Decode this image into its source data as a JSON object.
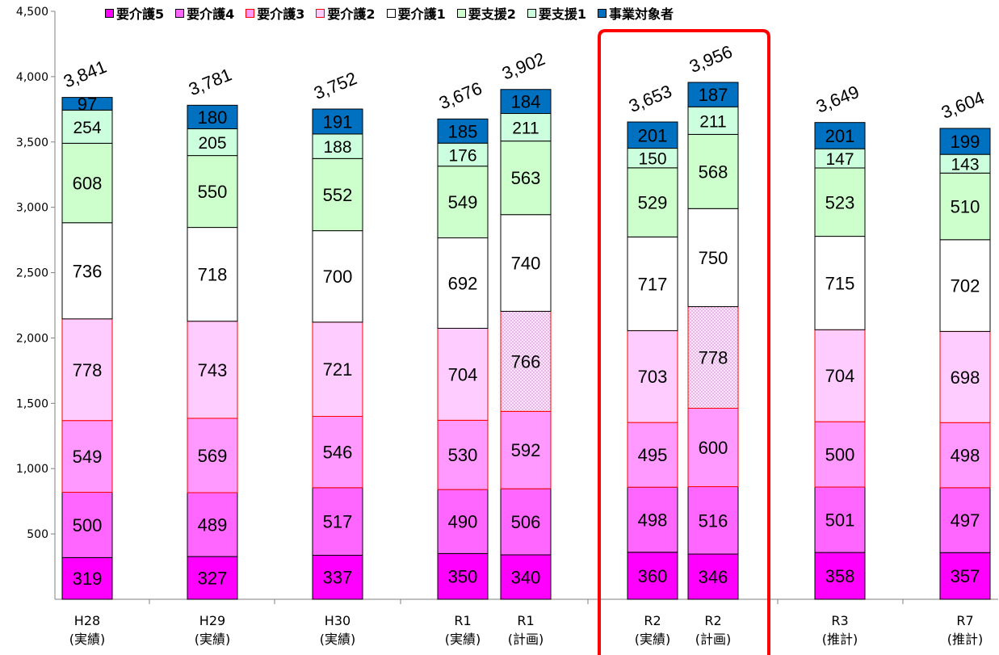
{
  "chart_data": {
    "type": "bar",
    "stacked": true,
    "ylim": [
      0,
      4500
    ],
    "yticks": [
      500,
      1000,
      1500,
      2000,
      2500,
      3000,
      3500,
      4000,
      4500
    ],
    "ytick_labels": [
      "500",
      "1,000",
      "1,500",
      "2,000",
      "2,500",
      "3,000",
      "3,500",
      "4,000",
      "4,500"
    ],
    "legend_position": "top",
    "categories": [
      {
        "line1": "H28",
        "line2": "(実績)"
      },
      {
        "line1": "H29",
        "line2": "(実績)"
      },
      {
        "line1": "H30",
        "line2": "(実績)"
      },
      {
        "line1": "R1",
        "line2": "(実績)"
      },
      {
        "line1": "R1",
        "line2": "(計画)"
      },
      {
        "line1": "R2",
        "line2": "(実績)"
      },
      {
        "line1": "R2",
        "line2": "(計画)"
      },
      {
        "line1": "R3",
        "line2": "(推計)"
      },
      {
        "line1": "R7",
        "line2": "(推計)"
      }
    ],
    "series": [
      {
        "name": "要介護5",
        "color": "#ff00ff",
        "border": "#000000",
        "values": [
          319,
          327,
          337,
          350,
          340,
          360,
          346,
          358,
          357
        ]
      },
      {
        "name": "要介護4",
        "color": "#ff66ff",
        "border": "#000000",
        "values": [
          500,
          489,
          517,
          490,
          506,
          498,
          516,
          501,
          497
        ]
      },
      {
        "name": "要介護3",
        "color": "#ff99ff",
        "border": "#ff0000",
        "values": [
          549,
          569,
          546,
          530,
          592,
          495,
          600,
          500,
          498
        ]
      },
      {
        "name": "要介護2",
        "color": "#ffccff",
        "border": "#ff0000",
        "values": [
          778,
          743,
          721,
          704,
          766,
          703,
          778,
          704,
          698
        ]
      },
      {
        "name": "要介護1",
        "color": "#ffffff",
        "border": "#000000",
        "values": [
          736,
          718,
          700,
          692,
          740,
          717,
          750,
          715,
          702
        ]
      },
      {
        "name": "要支援2",
        "color": "#ccffcc",
        "border": "#000000",
        "values": [
          608,
          550,
          552,
          549,
          563,
          529,
          568,
          523,
          510
        ]
      },
      {
        "name": "要支援1",
        "color": "#ccffdd",
        "border": "#000000",
        "values": [
          254,
          205,
          188,
          176,
          211,
          150,
          211,
          147,
          143
        ]
      },
      {
        "name": "事業対象者",
        "color": "#0070c0",
        "border": "#000000",
        "values": [
          97,
          180,
          191,
          185,
          184,
          201,
          187,
          201,
          199
        ]
      }
    ],
    "totals": [
      3841,
      3781,
      3752,
      3676,
      3902,
      3653,
      3956,
      3649,
      3604
    ],
    "total_labels": [
      "3,841",
      "3,781",
      "3,752",
      "3,676",
      "3,902",
      "3,653",
      "3,956",
      "3,649",
      "3,604"
    ],
    "highlight": {
      "categories": [
        5,
        6
      ],
      "color": "#ff0000"
    }
  }
}
